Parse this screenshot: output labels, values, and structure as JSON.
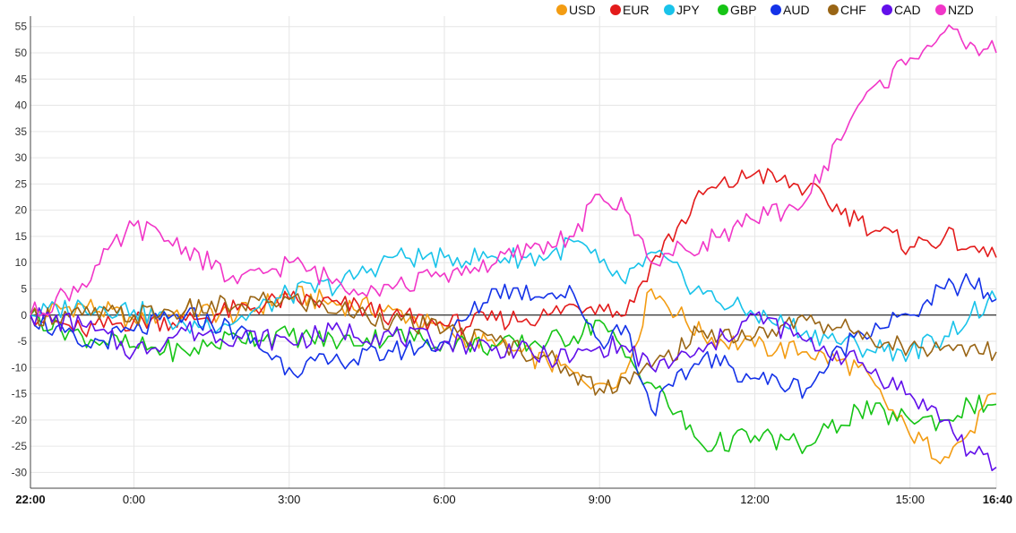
{
  "chart_data": {
    "type": "line",
    "title": "",
    "xlabel": "",
    "ylabel": "",
    "legend_position": "top-right",
    "grid": true,
    "ylim": [
      -33,
      57
    ],
    "y_ticks": [
      55,
      50,
      45,
      40,
      35,
      30,
      25,
      20,
      15,
      10,
      5,
      0,
      -5,
      -10,
      -15,
      -20,
      -25,
      -30
    ],
    "x_range_minutes": [
      0,
      1120
    ],
    "x_ticks": [
      {
        "label": "22:00",
        "minutes": 0,
        "bold": true
      },
      {
        "label": "0:00",
        "minutes": 120,
        "bold": false
      },
      {
        "label": "3:00",
        "minutes": 300,
        "bold": false
      },
      {
        "label": "6:00",
        "minutes": 480,
        "bold": false
      },
      {
        "label": "9:00",
        "minutes": 660,
        "bold": false
      },
      {
        "label": "12:00",
        "minutes": 840,
        "bold": false
      },
      {
        "label": "15:00",
        "minutes": 1020,
        "bold": false
      },
      {
        "label": "16:40",
        "minutes": 1120,
        "bold": true
      }
    ],
    "x": [
      0,
      60,
      120,
      180,
      240,
      300,
      360,
      420,
      480,
      540,
      600,
      630,
      660,
      690,
      720,
      780,
      840,
      900,
      960,
      1020,
      1060,
      1090,
      1120
    ],
    "series": [
      {
        "name": "USD",
        "color": "#f39c12",
        "values": [
          0,
          2,
          -1,
          1,
          0,
          4,
          2,
          1,
          -3,
          -6,
          -9,
          -11,
          -13,
          -11,
          5,
          -4,
          -6,
          -7,
          -10,
          -23,
          -27,
          -22,
          -15
        ]
      },
      {
        "name": "EUR",
        "color": "#e31b1b",
        "values": [
          0,
          -3,
          -1,
          -1,
          1,
          3,
          2,
          0,
          -2,
          -1,
          0,
          2,
          2,
          0,
          10,
          23,
          27,
          24,
          18,
          13,
          15,
          13,
          11
        ]
      },
      {
        "name": "JPY",
        "color": "#19c3ea",
        "values": [
          0,
          2,
          1,
          -2,
          -1,
          4,
          6,
          11,
          11,
          11,
          11,
          14,
          10,
          6,
          12,
          4,
          0,
          -3,
          -6,
          -7,
          -4,
          0,
          3
        ]
      },
      {
        "name": "GBP",
        "color": "#16c416",
        "values": [
          0,
          -4,
          -6,
          -7,
          -4,
          -4,
          -5,
          -4,
          -5,
          -6,
          -5,
          -4,
          -1,
          -8,
          -13,
          -25,
          -23,
          -25,
          -18,
          -20,
          -20,
          -17,
          -17
        ]
      },
      {
        "name": "AUD",
        "color": "#1432e8",
        "values": [
          0,
          -6,
          -3,
          0,
          -3,
          -10,
          -9,
          -7,
          -5,
          5,
          4,
          4,
          -5,
          -2,
          -18,
          -8,
          -12,
          -14,
          -3,
          0,
          5,
          6,
          3
        ]
      },
      {
        "name": "CHF",
        "color": "#996515",
        "values": [
          0,
          0,
          0,
          1,
          2,
          3,
          1,
          -1,
          -3,
          -5,
          -8,
          -11,
          -14,
          -12,
          -10,
          -3,
          -4,
          -1,
          -3,
          -6,
          -6,
          -6,
          -7
        ]
      },
      {
        "name": "CAD",
        "color": "#6210ea",
        "values": [
          0,
          -2,
          -7,
          -3,
          -4,
          -5,
          -3,
          -4,
          -5,
          -6,
          -8,
          -8,
          -6,
          -6,
          -10,
          -7,
          0,
          -5,
          -9,
          -15,
          -20,
          -26,
          -29
        ]
      },
      {
        "name": "NZD",
        "color": "#f136c8",
        "values": [
          0,
          6,
          17,
          13,
          6,
          10,
          6,
          5,
          8,
          10,
          14,
          15,
          23,
          20,
          10,
          14,
          18,
          22,
          40,
          49,
          54,
          52,
          50
        ]
      }
    ]
  }
}
